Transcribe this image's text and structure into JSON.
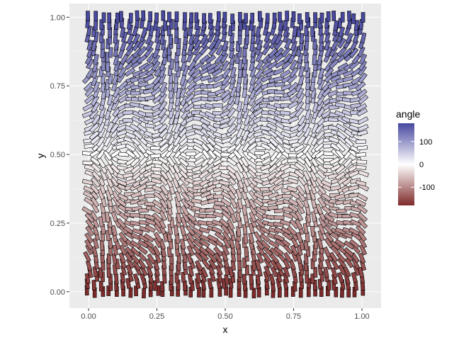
{
  "chart_data": {
    "type": "scatter",
    "geom": "tile",
    "title": "",
    "xlabel": "x",
    "ylabel": "y",
    "xlim": [
      -0.07,
      1.07
    ],
    "ylim": [
      -0.06,
      1.05
    ],
    "x_ticks": [
      0.0,
      0.25,
      0.5,
      0.75,
      1.0
    ],
    "x_tick_labels": [
      "0.00",
      "0.25",
      "0.50",
      "0.75",
      "1.00"
    ],
    "y_ticks": [
      0.0,
      0.25,
      0.5,
      0.75,
      1.0
    ],
    "y_tick_labels": [
      "0.00",
      "0.25",
      "0.50",
      "0.75",
      "1.00"
    ],
    "grid": true,
    "tile_aspect_note": "segments drawn as rotated rectangles colored by angle",
    "field": {
      "grid_x_start": 0.0,
      "grid_x_end": 1.0,
      "grid_x_steps": 40,
      "grid_y_start": 0.0,
      "grid_y_end": 1.0,
      "grid_y_steps": 40,
      "angle_formula": "angle = 180 * (y*2 - 1), with x-periodic deflection",
      "x_wave_periods": 4
    },
    "legend": {
      "title": "angle",
      "position": "right",
      "breaks": [
        100,
        0,
        -100
      ],
      "labels": [
        "100",
        "0",
        "-100"
      ],
      "limits": [
        -180,
        180
      ],
      "colors": {
        "low": "#7f2a2a",
        "mid": "#ffffff",
        "high": "#4848a0"
      }
    }
  },
  "colors": {
    "panel_bg": "#ebebeb",
    "grid_major": "#ffffff",
    "grid_minor": "#f5f5f5",
    "tile_stroke": "#000000"
  }
}
